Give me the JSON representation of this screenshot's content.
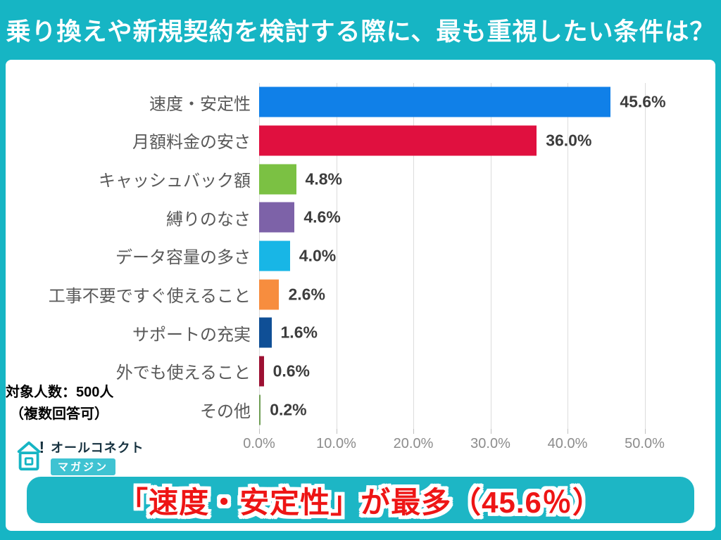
{
  "header": {
    "title": "乗り換えや新規契約を検討する際に、最も重視したい条件は？"
  },
  "chart_data": {
    "type": "bar",
    "orientation": "horizontal",
    "title": "",
    "xlabel": "",
    "ylabel": "",
    "xlim": [
      0,
      54
    ],
    "grid": true,
    "legend": false,
    "categories": [
      "速度・安定性",
      "月額料金の安さ",
      "キャッシュバック額",
      "縛りのなさ",
      "データ容量の多さ",
      "工事不要ですぐ使えること",
      "サポートの充実",
      "外でも使えること",
      "その他"
    ],
    "values": [
      45.6,
      36.0,
      4.8,
      4.6,
      4.0,
      2.6,
      1.6,
      0.6,
      0.2
    ],
    "value_labels": [
      "45.6%",
      "36.0%",
      "4.8%",
      "4.6%",
      "4.0%",
      "2.6%",
      "1.6%",
      "0.6%",
      "0.2%"
    ],
    "bar_colors": [
      "#1080e8",
      "#e0103f",
      "#7bc143",
      "#7d62a8",
      "#18b6e6",
      "#f78d3e",
      "#0f4f96",
      "#9d1133",
      "#6f9e55"
    ],
    "x_tick_values": [
      0,
      10,
      20,
      30,
      40,
      50
    ],
    "x_tick_labels": [
      "0.0%",
      "10.0%",
      "20.0%",
      "30.0%",
      "40.0%",
      "50.0%"
    ]
  },
  "note": {
    "line1": "対象人数：500人",
    "line2": "（複数回答可）"
  },
  "logo": {
    "brand": "オールコネクト",
    "sub": "マガジン",
    "mark": "!"
  },
  "footer_banner": {
    "text": "「速度・安定性」が最多（45.6％）"
  },
  "colors": {
    "frame_teal": "#16b5c4",
    "banner_red": "#ee1515",
    "category_label": "#595959",
    "value_label": "#3d3d3d",
    "axis_label": "#8c8c8c",
    "gridline": "#dcdcdc"
  }
}
